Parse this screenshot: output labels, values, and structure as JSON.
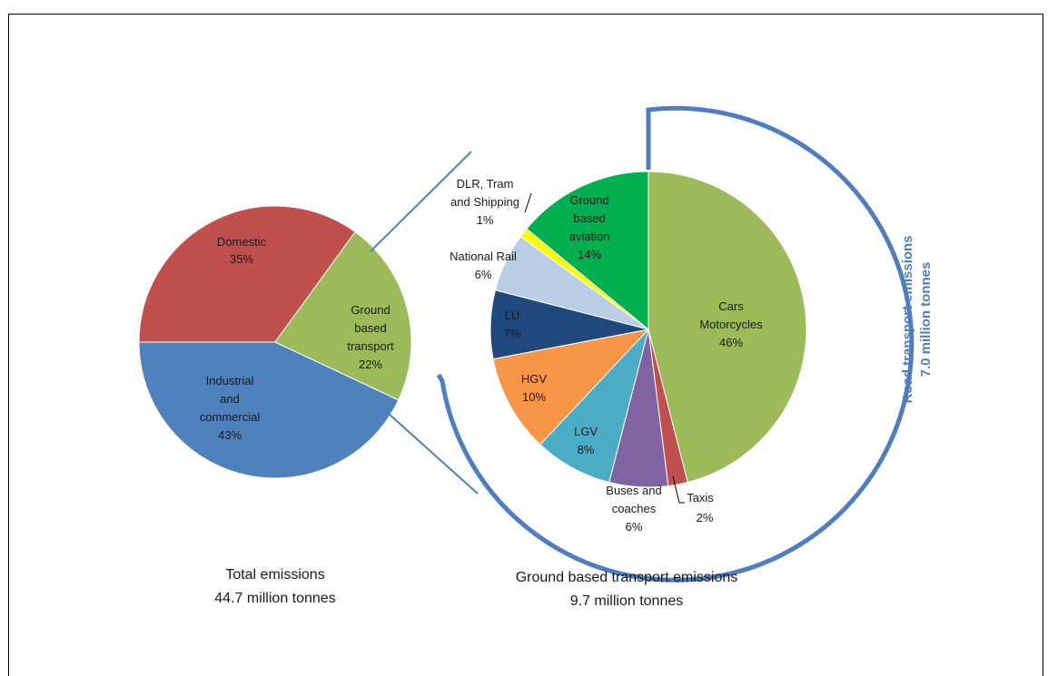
{
  "chart_data": [
    {
      "type": "pie",
      "slices": [
        {
          "label": "Domestic",
          "value": 35,
          "value_label": "35%",
          "color": "#c0504d"
        },
        {
          "label": "Industrial and commercial",
          "value": 43,
          "value_label": "43%",
          "color": "#4f81bd"
        },
        {
          "label": "Ground based transport",
          "value": 22,
          "value_label": "22%",
          "color": "#9bbb59"
        }
      ],
      "caption_line1": "Total emissions",
      "caption_line2": "44.7 million tonnes"
    },
    {
      "type": "pie",
      "slices": [
        {
          "label": "Cars Motorcycles",
          "value": 46,
          "value_label": "46%",
          "color": "#9bbb59"
        },
        {
          "label": "Taxis",
          "value": 2,
          "value_label": "2%",
          "color": "#c0504d"
        },
        {
          "label": "Buses and coaches",
          "value": 6,
          "value_label": "6%",
          "color": "#8064a2"
        },
        {
          "label": "LGV",
          "value": 8,
          "value_label": "8%",
          "color": "#4bacc6"
        },
        {
          "label": "HGV",
          "value": 10,
          "value_label": "10%",
          "color": "#f79646"
        },
        {
          "label": "LU",
          "value": 7,
          "value_label": "7%",
          "color": "#1f497d"
        },
        {
          "label": "National Rail",
          "value": 6,
          "value_label": "6%",
          "color": "#b9cde5"
        },
        {
          "label": "DLR, Tram and Shipping",
          "value": 1,
          "value_label": "1%",
          "color": "#ffff00"
        },
        {
          "label": "Ground based aviation",
          "value": 14,
          "value_label": "14%",
          "color": "#00b050"
        }
      ],
      "caption_line1": "Ground based transport emissions",
      "caption_line2": "9.7 million tonnes"
    }
  ],
  "road_bracket": {
    "line1": "Road transport emissions",
    "line2": "7.0 million tonnes",
    "color": "#4e7dc0"
  }
}
